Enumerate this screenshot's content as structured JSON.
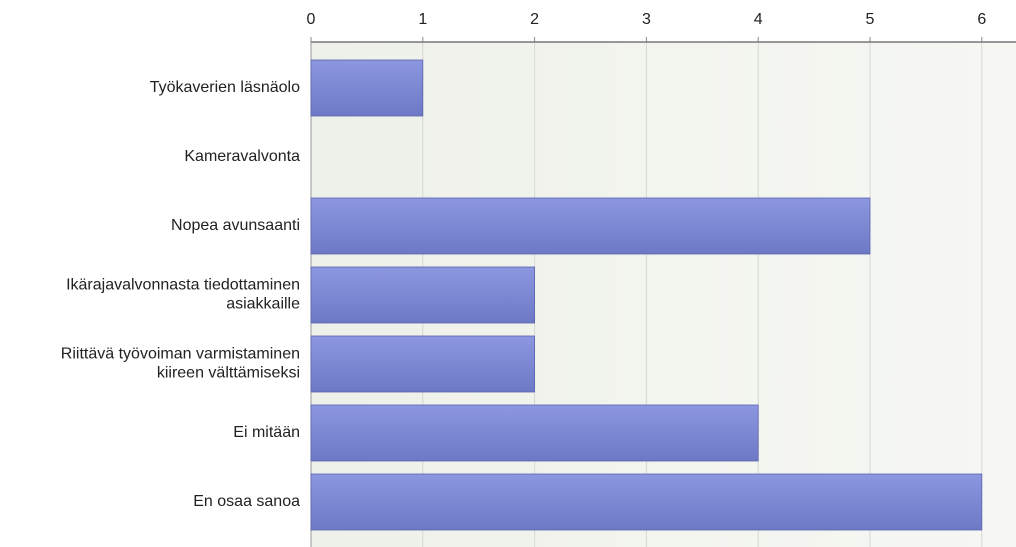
{
  "chart_data": {
    "type": "bar",
    "orientation": "horizontal",
    "categories": [
      "Työkaverien läsnäolo",
      "Kameravalvonta",
      "Nopea avunsaanti",
      "Ikärajavalvonnasta tiedottaminen\nasiakkaille",
      "Riittävä työvoiman varmistaminen\nkiireen välttämiseksi",
      "Ei mitään",
      "En osaa sanoa"
    ],
    "values": [
      1,
      0,
      5,
      2,
      2,
      4,
      6
    ],
    "color": "#7f8ad8",
    "xlim": [
      0,
      6.28
    ],
    "xticks": [
      0,
      1,
      2,
      3,
      4,
      5,
      6
    ],
    "grid": true
  }
}
